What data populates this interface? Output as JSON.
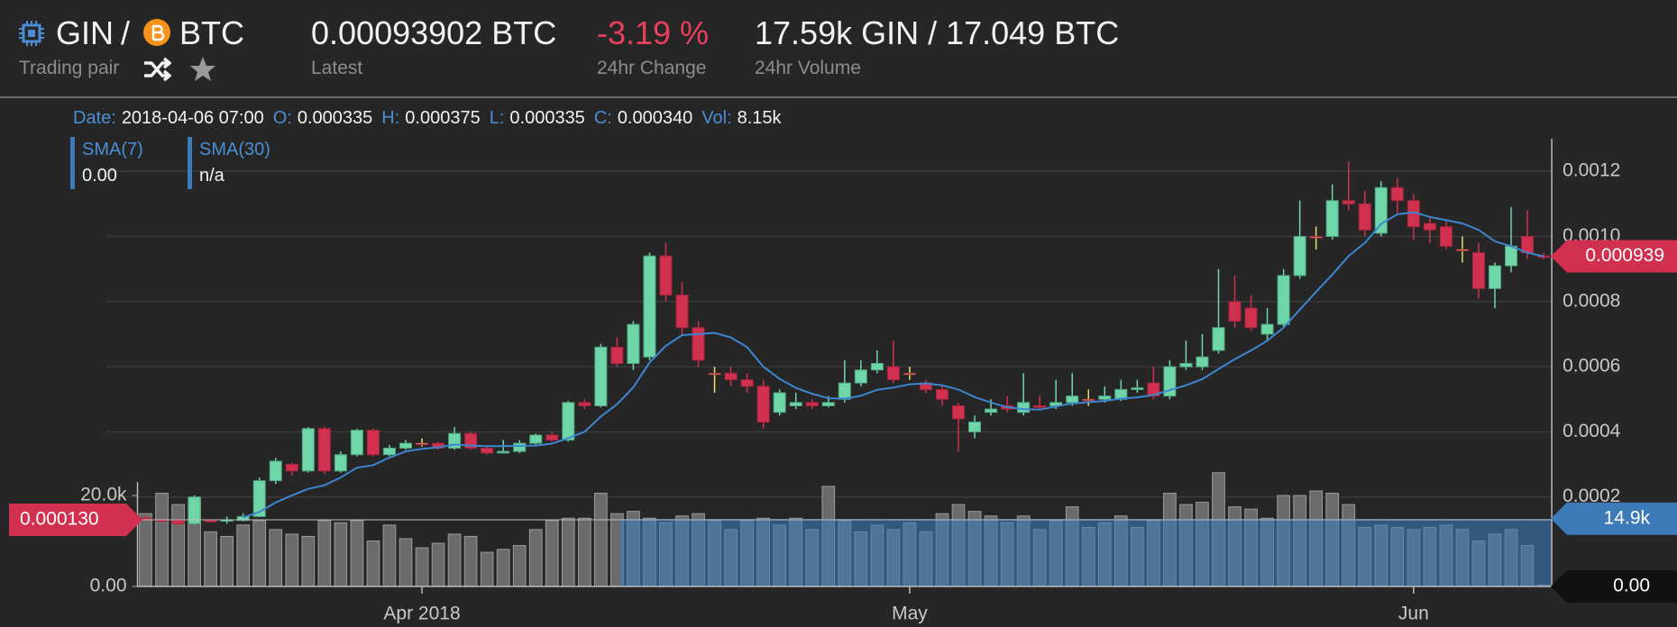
{
  "header": {
    "base": "GIN",
    "sep": "/",
    "quote": "BTC",
    "pair_label": "Trading pair",
    "latest": "0.00093902 BTC",
    "latest_label": "Latest",
    "change": "-3.19 %",
    "change_label": "24hr Change",
    "volume": "17.59k GIN / 17.049 BTC",
    "volume_label": "24hr Volume"
  },
  "tooltip": {
    "date_label": "Date:",
    "date": "2018-04-06 07:00",
    "open_label": "O:",
    "open": "0.000335",
    "high_label": "H:",
    "high": "0.000375",
    "low_label": "L:",
    "low": "0.000335",
    "close_label": "C:",
    "close": "0.000340",
    "vol_label": "Vol:",
    "vol": "8.15k"
  },
  "chart_data": {
    "type": "candlestick",
    "x": [
      "2018-03-15",
      "2018-03-16",
      "2018-03-17",
      "2018-03-18",
      "2018-03-19",
      "2018-03-20",
      "2018-03-21",
      "2018-03-22",
      "2018-03-23",
      "2018-03-24",
      "2018-03-25",
      "2018-03-26",
      "2018-03-27",
      "2018-03-28",
      "2018-03-29",
      "2018-03-30",
      "2018-03-31",
      "2018-04-01",
      "2018-04-02",
      "2018-04-03",
      "2018-04-04",
      "2018-04-05",
      "2018-04-06",
      "2018-04-07",
      "2018-04-08",
      "2018-04-09",
      "2018-04-10",
      "2018-04-11",
      "2018-04-12",
      "2018-04-13",
      "2018-04-14",
      "2018-04-15",
      "2018-04-16",
      "2018-04-17",
      "2018-04-18",
      "2018-04-19",
      "2018-04-20",
      "2018-04-21",
      "2018-04-22",
      "2018-04-23",
      "2018-04-24",
      "2018-04-25",
      "2018-04-26",
      "2018-04-27",
      "2018-04-28",
      "2018-04-29",
      "2018-04-30",
      "2018-05-01",
      "2018-05-02",
      "2018-05-03",
      "2018-05-04",
      "2018-05-05",
      "2018-05-06",
      "2018-05-07",
      "2018-05-08",
      "2018-05-09",
      "2018-05-10",
      "2018-05-11",
      "2018-05-12",
      "2018-05-13",
      "2018-05-14",
      "2018-05-15",
      "2018-05-16",
      "2018-05-17",
      "2018-05-18",
      "2018-05-19",
      "2018-05-20",
      "2018-05-21",
      "2018-05-22",
      "2018-05-23",
      "2018-05-24",
      "2018-05-25",
      "2018-05-26",
      "2018-05-27",
      "2018-05-28",
      "2018-05-29",
      "2018-05-30",
      "2018-05-31",
      "2018-06-01",
      "2018-06-02",
      "2018-06-03",
      "2018-06-04",
      "2018-06-05",
      "2018-06-06",
      "2018-06-07",
      "2018-06-08",
      "2018-06-09"
    ],
    "open": [
      0.000135,
      0.00013,
      0.000128,
      0.000118,
      0.000128,
      0.000126,
      0.000128,
      0.00014,
      0.00025,
      0.0003,
      0.00028,
      0.00041,
      0.00028,
      0.00033,
      0.000405,
      0.00033,
      0.00035,
      0.000365,
      0.000365,
      0.00035,
      0.000395,
      0.00035,
      0.000335,
      0.00034,
      0.000365,
      0.00039,
      0.000375,
      0.00049,
      0.00048,
      0.00066,
      0.00061,
      0.00063,
      0.00094,
      0.00082,
      0.00072,
      0.00058,
      0.00058,
      0.00056,
      0.00054,
      0.00046,
      0.00048,
      0.00049,
      0.00048,
      0.0005,
      0.00055,
      0.00059,
      0.0006,
      0.00058,
      0.00055,
      0.00053,
      0.00048,
      0.0004,
      0.00046,
      0.00048,
      0.00046,
      0.00048,
      0.00048,
      0.00049,
      0.0005,
      0.0005,
      0.0005,
      0.00053,
      0.00055,
      0.00051,
      0.0006,
      0.0006,
      0.00065,
      0.0008,
      0.00078,
      0.0007,
      0.00073,
      0.00088,
      0.001,
      0.001,
      0.00111,
      0.0011,
      0.00101,
      0.00115,
      0.00111,
      0.00104,
      0.00103,
      0.00096,
      0.00095,
      0.00084,
      0.00091,
      0.001,
      0.00094
    ],
    "close": [
      0.00013,
      0.000128,
      0.000118,
      0.0002,
      0.000126,
      0.00013,
      0.00014,
      0.00025,
      0.00031,
      0.00028,
      0.00041,
      0.00028,
      0.00033,
      0.000405,
      0.00033,
      0.00035,
      0.000365,
      0.000365,
      0.00035,
      0.000395,
      0.00035,
      0.000335,
      0.00034,
      0.000365,
      0.00039,
      0.000375,
      0.00049,
      0.00048,
      0.00066,
      0.00061,
      0.00073,
      0.00094,
      0.00082,
      0.00072,
      0.00062,
      0.00058,
      0.00056,
      0.00054,
      0.00043,
      0.00052,
      0.00049,
      0.00048,
      0.00049,
      0.00055,
      0.00059,
      0.00061,
      0.00056,
      0.00058,
      0.00053,
      0.0005,
      0.00044,
      0.00043,
      0.00047,
      0.00047,
      0.00049,
      0.000475,
      0.00049,
      0.00051,
      0.0005,
      0.00051,
      0.00053,
      0.000535,
      0.00051,
      0.0006,
      0.00061,
      0.00063,
      0.00072,
      0.00074,
      0.00072,
      0.00073,
      0.00088,
      0.001,
      0.001,
      0.00111,
      0.0011,
      0.00102,
      0.00115,
      0.00111,
      0.00103,
      0.00102,
      0.00097,
      0.00096,
      0.00084,
      0.00091,
      0.00097,
      0.00095,
      0.000939
    ],
    "high": [
      0.000145,
      0.00014,
      0.000132,
      0.000205,
      0.000132,
      0.00014,
      0.00015,
      0.00026,
      0.00032,
      0.000305,
      0.000415,
      0.000415,
      0.00034,
      0.00041,
      0.00041,
      0.00036,
      0.000375,
      0.00038,
      0.00037,
      0.000415,
      0.0004,
      0.000355,
      0.000375,
      0.000375,
      0.000395,
      0.0004,
      0.000495,
      0.0005,
      0.00067,
      0.00069,
      0.00074,
      0.00095,
      0.00098,
      0.00086,
      0.00074,
      0.0006,
      0.0006,
      0.00058,
      0.00056,
      0.00053,
      0.00052,
      0.0005,
      0.00051,
      0.00062,
      0.00062,
      0.00065,
      0.00068,
      0.0006,
      0.00056,
      0.00054,
      0.00049,
      0.00045,
      0.0005,
      0.00051,
      0.00058,
      0.00051,
      0.00056,
      0.00058,
      0.00053,
      0.00054,
      0.00056,
      0.00056,
      0.0006,
      0.00062,
      0.00068,
      0.0007,
      0.0009,
      0.00088,
      0.00082,
      0.00078,
      0.0009,
      0.00111,
      0.00103,
      0.00116,
      0.00123,
      0.00114,
      0.00117,
      0.00118,
      0.00113,
      0.00106,
      0.00105,
      0.001,
      0.00098,
      0.00092,
      0.00109,
      0.00108,
      0.00095
    ],
    "low": [
      0.000125,
      0.00012,
      0.00011,
      0.000115,
      0.00012,
      0.000118,
      0.000125,
      0.000138,
      0.00024,
      0.000265,
      0.000275,
      0.00027,
      0.000275,
      0.000325,
      0.000325,
      0.000325,
      0.000345,
      0.000355,
      0.000345,
      0.000345,
      0.000345,
      0.00033,
      0.000335,
      0.000335,
      0.00036,
      0.00037,
      0.00037,
      0.00047,
      0.000475,
      0.0006,
      0.00059,
      0.00062,
      0.0008,
      0.0007,
      0.0006,
      0.00052,
      0.00054,
      0.00052,
      0.00041,
      0.00045,
      0.00047,
      0.00047,
      0.000475,
      0.00049,
      0.00054,
      0.00058,
      0.00055,
      0.00056,
      0.00052,
      0.00048,
      0.00034,
      0.00038,
      0.00045,
      0.00046,
      0.00045,
      0.00047,
      0.00047,
      0.00048,
      0.00048,
      0.00049,
      0.000495,
      0.00052,
      0.0005,
      0.0005,
      0.00059,
      0.00059,
      0.00064,
      0.00072,
      0.00071,
      0.00068,
      0.00072,
      0.00087,
      0.00096,
      0.00099,
      0.00108,
      0.001,
      0.001,
      0.00107,
      0.00099,
      0.00098,
      0.00096,
      0.00092,
      0.00081,
      0.00078,
      0.00089,
      0.00093,
      0.00093
    ],
    "volume": [
      16000,
      20500,
      18000,
      19500,
      12000,
      11000,
      13500,
      14500,
      12500,
      11500,
      11000,
      14500,
      14000,
      14500,
      10000,
      13500,
      10500,
      8500,
      9500,
      11500,
      11000,
      7500,
      8150,
      9000,
      12500,
      14500,
      15000,
      15000,
      20500,
      16000,
      16500,
      15000,
      14000,
      15500,
      16000,
      14500,
      12500,
      14500,
      15000,
      13500,
      15000,
      12500,
      22000,
      14500,
      12000,
      13500,
      12500,
      14000,
      12000,
      16000,
      18000,
      16500,
      15500,
      14000,
      15500,
      12500,
      14500,
      17500,
      13000,
      14000,
      15500,
      13000,
      14500,
      20500,
      18000,
      18500,
      25000,
      17500,
      17000,
      15000,
      20000,
      20000,
      21000,
      20500,
      18000,
      13000,
      13500,
      13000,
      12500,
      13000,
      13500,
      12500,
      10000,
      11500,
      12500,
      9000,
      300
    ],
    "up_color": "#6fd6a8",
    "down_color": "#d1314f",
    "flat_color": "#e8e070",
    "volume_color": "#6b6b6b",
    "sma7": {
      "name": "SMA(7)",
      "value_label": "0.00",
      "color": "#3d86d0",
      "values": [
        null,
        null,
        null,
        null,
        null,
        null,
        0.000137,
        0.000154,
        0.000183,
        0.000205,
        0.000225,
        0.000236,
        0.00026,
        0.00029,
        0.000298,
        0.000321,
        0.00034,
        0.000348,
        0.000352,
        0.000361,
        0.000358,
        0.000356,
        0.000356,
        0.000357,
        0.000358,
        0.000364,
        0.000381,
        0.0004,
        0.000447,
        0.000485,
        0.000537,
        0.000613,
        0.000664,
        0.000697,
        0.0007,
        0.000704,
        0.00069,
        0.00066,
        0.0006,
        0.000563,
        0.000535,
        0.000517,
        0.000503,
        0.000502,
        0.000511,
        0.000529,
        0.000536,
        0.000546,
        0.000549,
        0.000543,
        0.00053,
        0.000507,
        0.00049,
        0.000476,
        0.00047,
        0.000468,
        0.000478,
        0.000487,
        0.000491,
        0.000495,
        0.000502,
        0.000506,
        0.000513,
        0.000528,
        0.000543,
        0.000562,
        0.000593,
        0.000623,
        0.00065,
        0.00068,
        0.00072,
        0.000775,
        0.00083,
        0.000883,
        0.00094,
        0.00098,
        0.001038,
        0.001068,
        0.001074,
        0.00106,
        0.00105,
        0.00104,
        0.00102,
        0.000985,
        0.00097,
        0.00095,
        0.000939
      ]
    },
    "sma30": {
      "name": "SMA(30)",
      "value_label": "n/a"
    },
    "ylim": [
      0,
      0.0013
    ],
    "yticks": [
      0.0002,
      0.0004,
      0.0006,
      0.0008,
      {
        "value": 0.001,
        "label": "0.0010"
      },
      0.0012
    ],
    "vlim": [
      0,
      20000
    ],
    "vticks": [
      {
        "value": 0,
        "label": "0.00"
      },
      {
        "value": 20000,
        "label": "20.0k"
      }
    ],
    "xticks": [
      {
        "value": "2018-04-01",
        "label": "Apr 2018"
      },
      {
        "value": "2018-05-01",
        "label": "May"
      },
      {
        "value": "2018-06-01",
        "label": "Jun"
      }
    ],
    "grid": true,
    "markers": {
      "last_price": 0.000939,
      "cursor_price": {
        "value": 0.00013,
        "label": "0.000130"
      },
      "volume_sma": {
        "value": 14900,
        "label": "14.9k"
      },
      "last_volume": {
        "value": 0,
        "label": "0.00"
      }
    }
  }
}
